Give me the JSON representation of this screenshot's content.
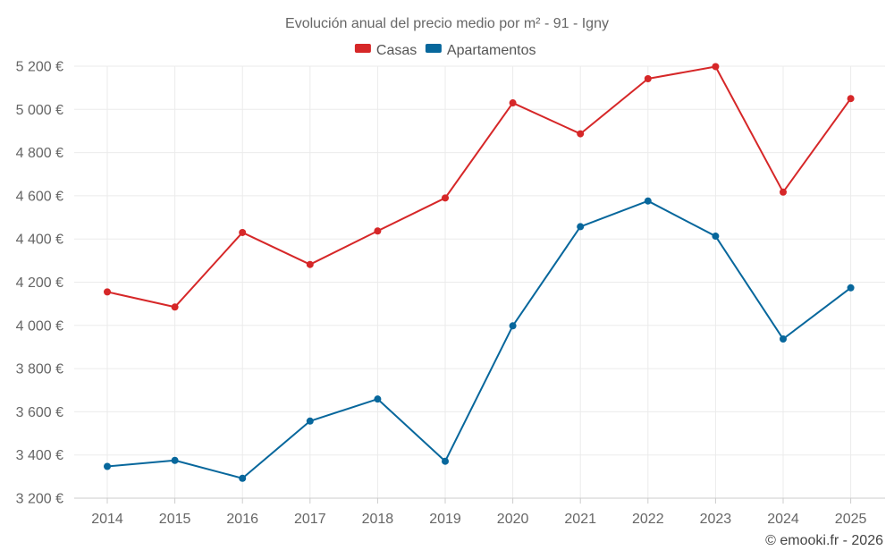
{
  "chart_data": {
    "type": "line",
    "title": "Evolución anual del precio medio por m² - 91 - Igny",
    "xlabel": "",
    "ylabel": "",
    "categories": [
      "2014",
      "2015",
      "2016",
      "2017",
      "2018",
      "2019",
      "2020",
      "2021",
      "2022",
      "2023",
      "2024",
      "2025"
    ],
    "ylim": [
      3200,
      5200
    ],
    "yticks": [
      3200,
      3400,
      3600,
      3800,
      4000,
      4200,
      4400,
      4600,
      4800,
      5000,
      5200
    ],
    "ytick_labels": [
      "3 200 €",
      "3 400 €",
      "3 600 €",
      "3 800 €",
      "4 000 €",
      "4 200 €",
      "4 400 €",
      "4 600 €",
      "4 800 €",
      "5 000 €",
      "5 200 €"
    ],
    "grid": true,
    "legend_position": "top-center",
    "series": [
      {
        "name": "Casas",
        "color": "#d62728",
        "values": [
          4155,
          4085,
          4430,
          4282,
          4437,
          4590,
          5030,
          4887,
          5142,
          5198,
          4617,
          5050
        ]
      },
      {
        "name": "Apartamentos",
        "color": "#07679c",
        "values": [
          3347,
          3375,
          3292,
          3557,
          3659,
          3371,
          3998,
          4457,
          4576,
          4413,
          3937,
          4174
        ]
      }
    ],
    "credit": "© emooki.fr - 2026"
  }
}
